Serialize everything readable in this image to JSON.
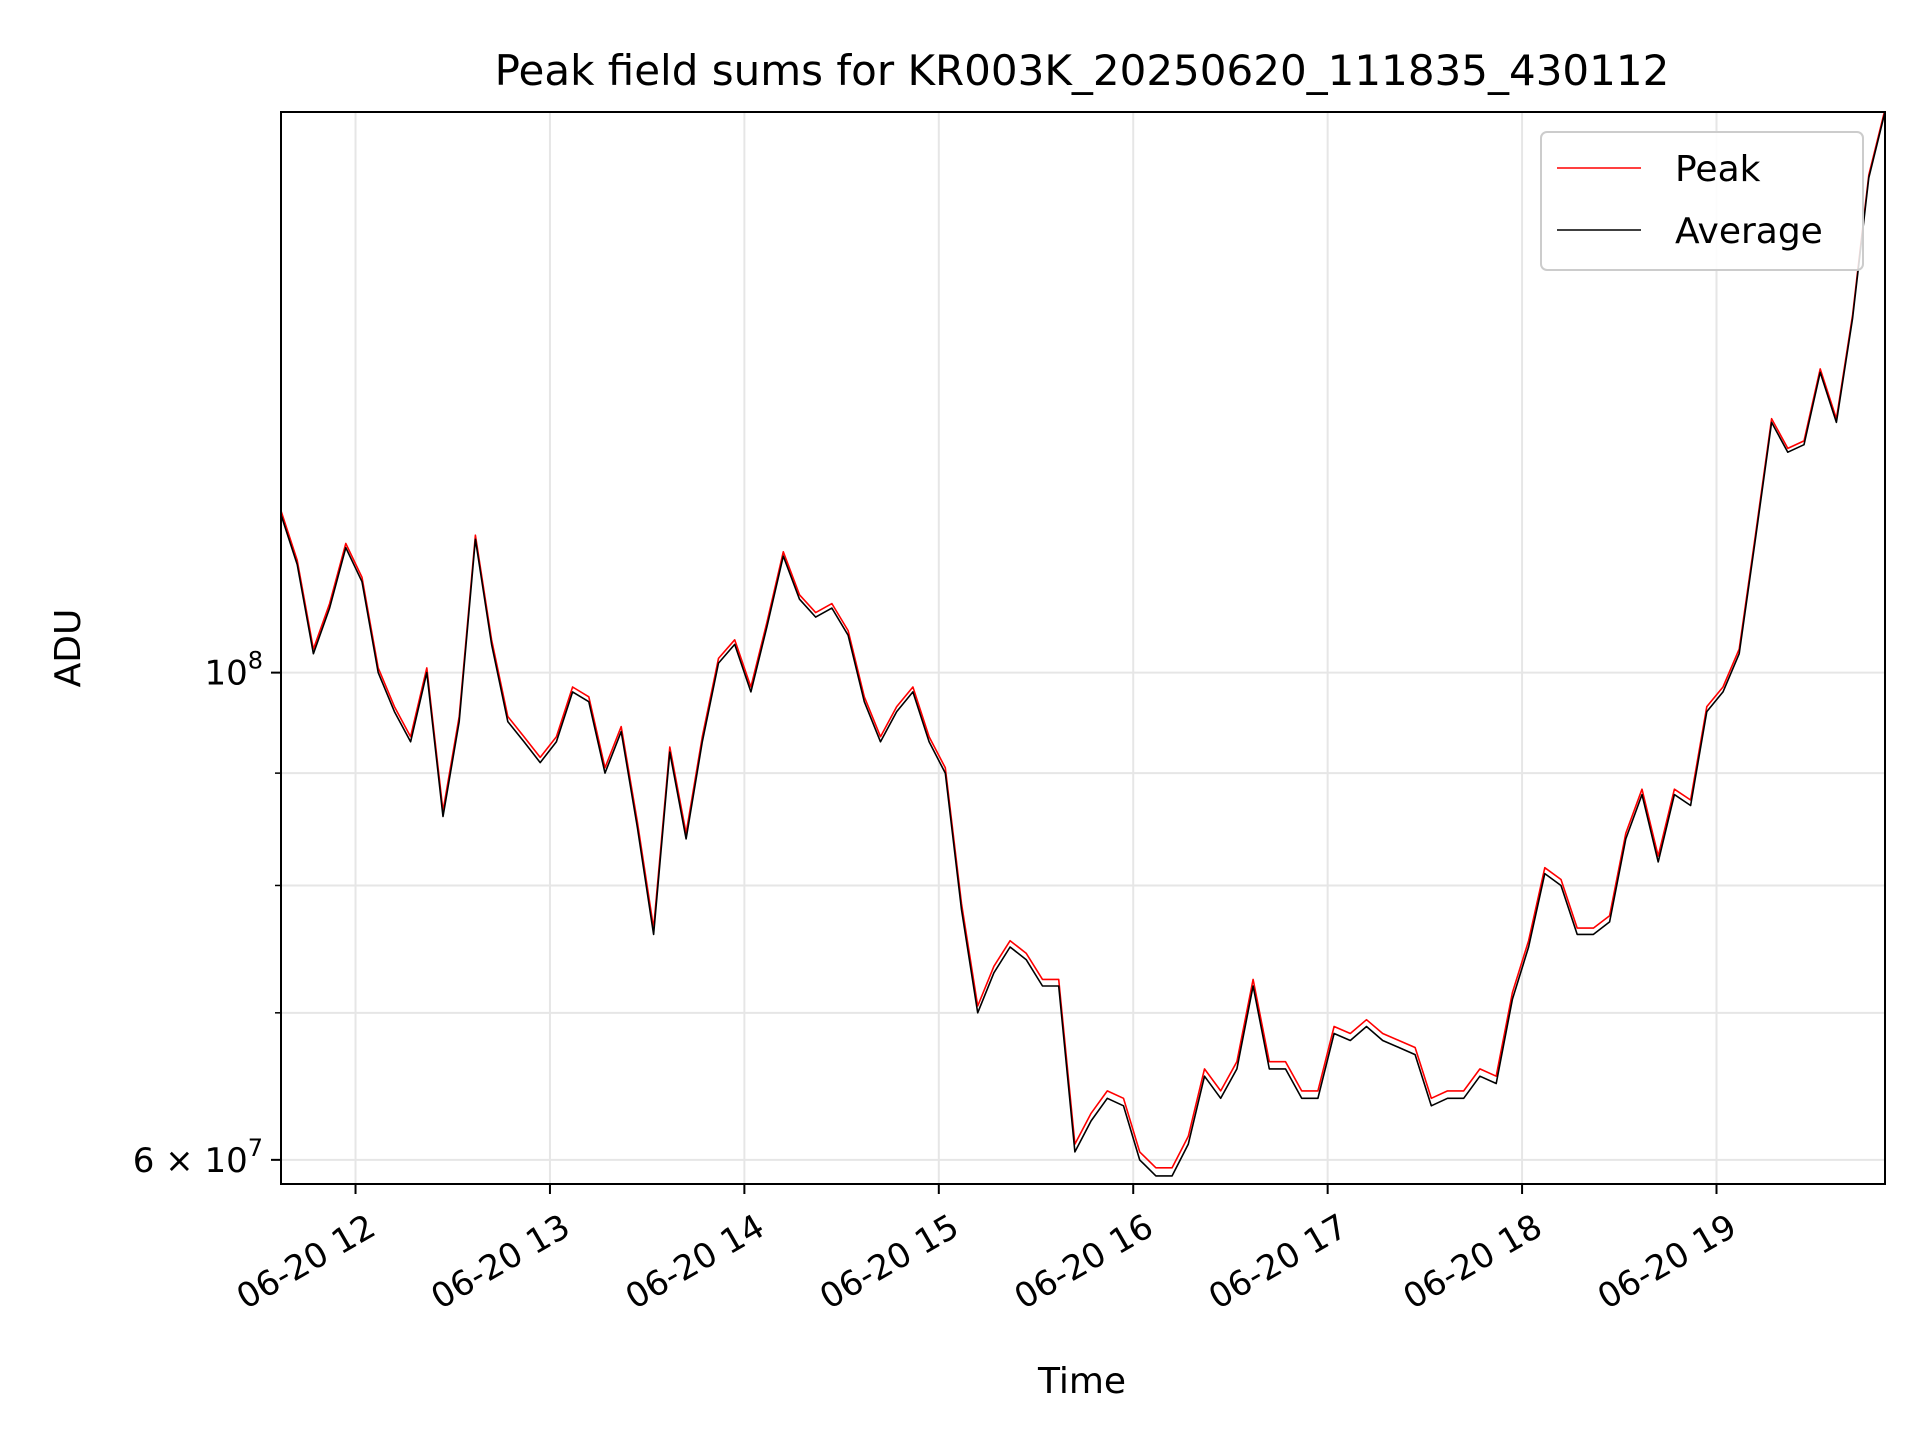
{
  "chart_data": {
    "type": "line",
    "title": "Peak field sums for KR003K_20250620_111835_430112",
    "xlabel": "Time",
    "ylabel": "ADU",
    "x_scale": "time",
    "y_scale": "log",
    "x_range": [
      "06-20 11:37",
      "06-20 19:52"
    ],
    "ylim": [
      58500000,
      180000000
    ],
    "x_ticks": [
      "06-20 12",
      "06-20 13",
      "06-20 14",
      "06-20 15",
      "06-20 16",
      "06-20 17",
      "06-20 18",
      "06-20 19"
    ],
    "y_ticks": [
      {
        "label_base": "10",
        "label_exp": "8",
        "value": 100000000
      },
      {
        "label_base": "6 × 10",
        "label_exp": "7",
        "value": 60000000
      }
    ],
    "y_minor_gridlines": [
      70000000,
      80000000,
      90000000
    ],
    "grid": true,
    "legend_position": "top-right",
    "series": [
      {
        "name": "Peak",
        "color": "#ff0000"
      },
      {
        "name": "Average",
        "color": "#000000"
      }
    ],
    "x": [
      "11:37",
      "11:42",
      "11:47",
      "11:52",
      "11:57",
      "12:02",
      "12:07",
      "12:12",
      "12:17",
      "12:22",
      "12:27",
      "12:32",
      "12:37",
      "12:42",
      "12:47",
      "12:52",
      "12:57",
      "13:02",
      "13:07",
      "13:12",
      "13:17",
      "13:22",
      "13:27",
      "13:32",
      "13:37",
      "13:42",
      "13:47",
      "13:52",
      "13:57",
      "14:02",
      "14:07",
      "14:12",
      "14:17",
      "14:22",
      "14:27",
      "14:32",
      "14:37",
      "14:42",
      "14:47",
      "14:52",
      "14:57",
      "15:02",
      "15:07",
      "15:12",
      "15:17",
      "15:22",
      "15:27",
      "15:32",
      "15:37",
      "15:42",
      "15:47",
      "15:52",
      "15:57",
      "16:02",
      "16:07",
      "16:12",
      "16:17",
      "16:22",
      "16:27",
      "16:32",
      "16:37",
      "16:42",
      "16:47",
      "16:52",
      "16:57",
      "17:02",
      "17:07",
      "17:12",
      "17:17",
      "17:22",
      "17:27",
      "17:32",
      "17:37",
      "17:42",
      "17:47",
      "17:52",
      "17:57",
      "18:02",
      "18:07",
      "18:12",
      "18:17",
      "18:22",
      "18:27",
      "18:32",
      "18:37",
      "18:42",
      "18:47",
      "18:52",
      "18:57",
      "19:02",
      "19:07",
      "19:12",
      "19:17",
      "19:22",
      "19:27",
      "19:32",
      "19:37",
      "19:42",
      "19:47",
      "19:52"
    ],
    "values_average": [
      118000000,
      112000000,
      102000000,
      107000000,
      114000000,
      110000000,
      100000000,
      96000000,
      93000000,
      100000000,
      86000000,
      95000000,
      115000000,
      103000000,
      95000000,
      93000000,
      91000000,
      93000000,
      98000000,
      97000000,
      90000000,
      94000000,
      85000000,
      76000000,
      92000000,
      84000000,
      93000000,
      101000000,
      103000000,
      98000000,
      105000000,
      113000000,
      108000000,
      106000000,
      107000000,
      104000000,
      97000000,
      93000000,
      96000000,
      98000000,
      93000000,
      90000000,
      78000000,
      70000000,
      73000000,
      75000000,
      74000000,
      72000000,
      72000000,
      60500000,
      62500000,
      64000000,
      63500000,
      60000000,
      59000000,
      59000000,
      61000000,
      65500000,
      64000000,
      66000000,
      72000000,
      66000000,
      66000000,
      64000000,
      64000000,
      68500000,
      68000000,
      69000000,
      68000000,
      67500000,
      67000000,
      63500000,
      64000000,
      64000000,
      65500000,
      65000000,
      71000000,
      75000000,
      81000000,
      80000000,
      76000000,
      76000000,
      77000000,
      84000000,
      88000000,
      82000000,
      88000000,
      87000000,
      96000000,
      98000000,
      102000000,
      115000000,
      130000000,
      126000000,
      127000000,
      137000000,
      130000000,
      145000000,
      168000000,
      180000000
    ],
    "values_peak": [
      118500000,
      112500000,
      102500000,
      107500000,
      114500000,
      110500000,
      100500000,
      96500000,
      93500000,
      100500000,
      86500000,
      95500000,
      115500000,
      103500000,
      95500000,
      93500000,
      91500000,
      93500000,
      98500000,
      97500000,
      90500000,
      94500000,
      85500000,
      76500000,
      92500000,
      84500000,
      93500000,
      101500000,
      103500000,
      98500000,
      105500000,
      113500000,
      108500000,
      106500000,
      107500000,
      104500000,
      97500000,
      93500000,
      96500000,
      98500000,
      93500000,
      90500000,
      78500000,
      70500000,
      73500000,
      75500000,
      74500000,
      72500000,
      72500000,
      61000000,
      63000000,
      64500000,
      64000000,
      60500000,
      59500000,
      59500000,
      61500000,
      66000000,
      64500000,
      66500000,
      72500000,
      66500000,
      66500000,
      64500000,
      64500000,
      69000000,
      68500000,
      69500000,
      68500000,
      68000000,
      67500000,
      64000000,
      64500000,
      64500000,
      66000000,
      65500000,
      71500000,
      75500000,
      81500000,
      80500000,
      76500000,
      76500000,
      77500000,
      84500000,
      88500000,
      82500000,
      88500000,
      87500000,
      96500000,
      98500000,
      102500000,
      115500000,
      130500000,
      126500000,
      127500000,
      137500000,
      130500000,
      145500000,
      168500000,
      180500000
    ]
  }
}
